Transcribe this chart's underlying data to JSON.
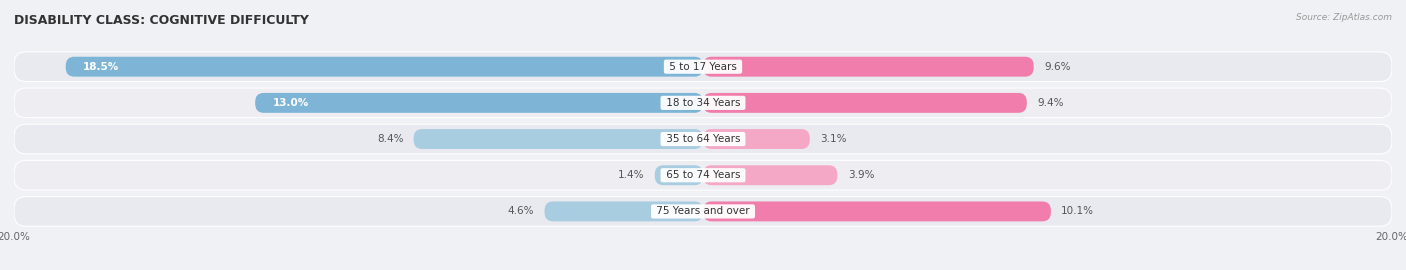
{
  "title": "DISABILITY CLASS: COGNITIVE DIFFICULTY",
  "source": "Source: ZipAtlas.com",
  "categories": [
    "5 to 17 Years",
    "18 to 34 Years",
    "35 to 64 Years",
    "65 to 74 Years",
    "75 Years and over"
  ],
  "male_values": [
    18.5,
    13.0,
    8.4,
    1.4,
    4.6
  ],
  "female_values": [
    9.6,
    9.4,
    3.1,
    3.9,
    10.1
  ],
  "male_color": "#7eb5d6",
  "female_color": "#f07dab",
  "male_color_light": "#a8cce0",
  "female_color_light": "#f5a8c5",
  "axis_max": 20.0,
  "bar_height": 0.55,
  "bg_color": "#f0f1f5",
  "row_bg_even": "#e8eaf0",
  "row_bg_odd": "#ededf2",
  "title_fontsize": 9,
  "label_fontsize": 7.5,
  "value_fontsize": 7.5,
  "tick_fontsize": 7.5,
  "legend_fontsize": 8
}
